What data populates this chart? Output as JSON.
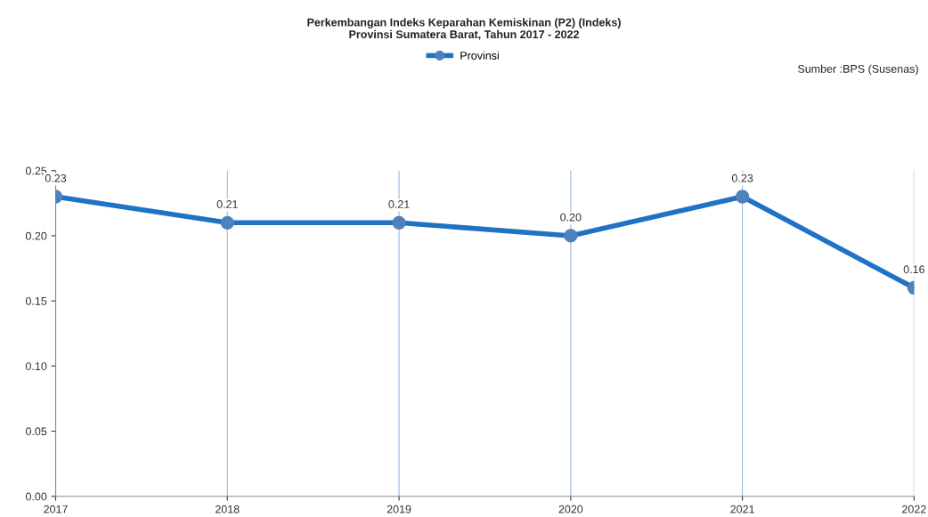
{
  "chart_data": {
    "type": "line",
    "title": "Perkembangan Indeks Keparahan Kemiskinan (P2) (Indeks)\nProvinsi Sumatera Barat, Tahun 2017 - 2022",
    "categories": [
      "2017",
      "2018",
      "2019",
      "2020",
      "2021",
      "2022"
    ],
    "series": [
      {
        "name": "Provinsi",
        "color": "#1f72c4",
        "values": [
          0.23,
          0.21,
          0.21,
          0.2,
          0.23,
          0.16
        ],
        "value_labels": [
          "0.23",
          "0.21",
          "0.21",
          "0.20",
          "0.23",
          "0.16"
        ]
      }
    ],
    "ylim": [
      0,
      0.25
    ],
    "yticks": [
      {
        "value": 0,
        "label": "0.00"
      },
      {
        "value": 0.05,
        "label": "0.05"
      },
      {
        "value": 0.1,
        "label": "0.10"
      },
      {
        "value": 0.15,
        "label": "0.15"
      },
      {
        "value": 0.2,
        "label": "0.20"
      },
      {
        "value": 0.25,
        "label": "0.25"
      }
    ],
    "grid": "x",
    "legend": "top",
    "marker": "circle",
    "line_style": "solid",
    "annotations": [
      "Sumber :BPS (Susenas)"
    ]
  }
}
